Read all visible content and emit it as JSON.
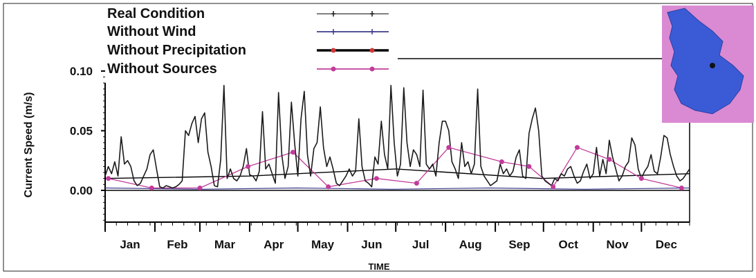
{
  "chart_data": {
    "type": "line",
    "ylabel": "Current Speed (m/s)",
    "xlabel": "TIME",
    "ylim": [
      -0.03,
      0.1
    ],
    "yticks": [
      {
        "value": 0.1,
        "label": "0.10"
      },
      {
        "value": 0.05,
        "label": "0.05"
      },
      {
        "value": 0.0,
        "label": "0.00"
      }
    ],
    "months": [
      "Jan",
      "Feb",
      "Mar",
      "Apr",
      "May",
      "Jun",
      "Jul",
      "Aug",
      "Sep",
      "Oct",
      "Nov",
      "Dec"
    ],
    "x_unit": "day of year",
    "xlim": [
      1,
      365
    ],
    "legend_position": "top-left",
    "grid": false,
    "series": [
      {
        "name": "Real Condition",
        "color": "#1a1a1a",
        "marker": "plus",
        "points": [
          [
            1,
            0.012
          ],
          [
            3,
            0.02
          ],
          [
            5,
            0.014
          ],
          [
            7,
            0.024
          ],
          [
            9,
            0.012
          ],
          [
            11,
            0.045
          ],
          [
            13,
            0.022
          ],
          [
            15,
            0.025
          ],
          [
            17,
            0.02
          ],
          [
            19,
            0.008
          ],
          [
            21,
            0.004
          ],
          [
            23,
            0.006
          ],
          [
            25,
            0.012
          ],
          [
            27,
            0.018
          ],
          [
            29,
            0.03
          ],
          [
            31,
            0.034
          ],
          [
            33,
            0.018
          ],
          [
            35,
            0.003
          ],
          [
            37,
            0.002
          ],
          [
            39,
            0.004
          ],
          [
            41,
            0.003
          ],
          [
            43,
            0.002
          ],
          [
            45,
            0.003
          ],
          [
            47,
            0.005
          ],
          [
            49,
            0.008
          ],
          [
            51,
            0.05
          ],
          [
            53,
            0.046
          ],
          [
            55,
            0.056
          ],
          [
            57,
            0.062
          ],
          [
            59,
            0.04
          ],
          [
            61,
            0.06
          ],
          [
            63,
            0.065
          ],
          [
            65,
            0.032
          ],
          [
            67,
            0.02
          ],
          [
            69,
            0.004
          ],
          [
            71,
            0.003
          ],
          [
            73,
            0.026
          ],
          [
            75,
            0.088
          ],
          [
            77,
            0.01
          ],
          [
            79,
            0.018
          ],
          [
            81,
            0.01
          ],
          [
            83,
            0.008
          ],
          [
            85,
            0.012
          ],
          [
            87,
            0.02
          ],
          [
            89,
            0.035
          ],
          [
            91,
            0.013
          ],
          [
            93,
            0.012
          ],
          [
            95,
            0.008
          ],
          [
            97,
            0.016
          ],
          [
            99,
            0.066
          ],
          [
            101,
            0.018
          ],
          [
            103,
            0.022
          ],
          [
            105,
            0.014
          ],
          [
            107,
            0.006
          ],
          [
            109,
            0.082
          ],
          [
            111,
            0.03
          ],
          [
            113,
            0.01
          ],
          [
            115,
            0.02
          ],
          [
            117,
            0.074
          ],
          [
            119,
            0.04
          ],
          [
            121,
            0.012
          ],
          [
            123,
            0.06
          ],
          [
            125,
            0.083
          ],
          [
            127,
            0.03
          ],
          [
            129,
            0.012
          ],
          [
            131,
            0.035
          ],
          [
            133,
            0.04
          ],
          [
            135,
            0.07
          ],
          [
            137,
            0.036
          ],
          [
            139,
            0.02
          ],
          [
            141,
            0.028
          ],
          [
            143,
            0.018
          ],
          [
            145,
            0.006
          ],
          [
            147,
            0.004
          ],
          [
            149,
            0.008
          ],
          [
            151,
            0.012
          ],
          [
            153,
            0.018
          ],
          [
            155,
            0.012
          ],
          [
            157,
            0.016
          ],
          [
            159,
            0.06
          ],
          [
            161,
            0.02
          ],
          [
            163,
            0.008
          ],
          [
            165,
            0.006
          ],
          [
            167,
            0.003
          ],
          [
            169,
            0.028
          ],
          [
            171,
            0.022
          ],
          [
            173,
            0.058
          ],
          [
            175,
            0.03
          ],
          [
            177,
            0.018
          ],
          [
            179,
            0.088
          ],
          [
            181,
            0.04
          ],
          [
            183,
            0.012
          ],
          [
            185,
            0.022
          ],
          [
            187,
            0.086
          ],
          [
            189,
            0.04
          ],
          [
            191,
            0.02
          ],
          [
            193,
            0.034
          ],
          [
            195,
            0.03
          ],
          [
            197,
            0.02
          ],
          [
            199,
            0.084
          ],
          [
            201,
            0.022
          ],
          [
            203,
            0.018
          ],
          [
            205,
            0.022
          ],
          [
            207,
            0.012
          ],
          [
            209,
            0.04
          ],
          [
            211,
            0.058
          ],
          [
            213,
            0.058
          ],
          [
            215,
            0.05
          ],
          [
            217,
            0.024
          ],
          [
            219,
            0.018
          ],
          [
            221,
            0.01
          ],
          [
            223,
            0.04
          ],
          [
            225,
            0.02
          ],
          [
            227,
            0.024
          ],
          [
            229,
            0.014
          ],
          [
            231,
            0.022
          ],
          [
            233,
            0.085
          ],
          [
            235,
            0.02
          ],
          [
            237,
            0.012
          ],
          [
            239,
            0.008
          ],
          [
            241,
            0.004
          ],
          [
            243,
            0.006
          ],
          [
            245,
            0.008
          ],
          [
            247,
            0.022
          ],
          [
            249,
            0.014
          ],
          [
            251,
            0.018
          ],
          [
            253,
            0.012
          ],
          [
            255,
            0.016
          ],
          [
            257,
            0.028
          ],
          [
            259,
            0.034
          ],
          [
            261,
            0.012
          ],
          [
            263,
            0.01
          ],
          [
            265,
            0.048
          ],
          [
            267,
            0.06
          ],
          [
            269,
            0.069
          ],
          [
            271,
            0.05
          ],
          [
            273,
            0.012
          ],
          [
            275,
            0.008
          ],
          [
            277,
            0.006
          ],
          [
            279,
            0.004
          ],
          [
            281,
            0.01
          ],
          [
            283,
            0.008
          ],
          [
            285,
            0.014
          ],
          [
            287,
            0.012
          ],
          [
            289,
            0.018
          ],
          [
            291,
            0.02
          ],
          [
            293,
            0.012
          ],
          [
            295,
            0.006
          ],
          [
            297,
            0.008
          ],
          [
            299,
            0.016
          ],
          [
            301,
            0.022
          ],
          [
            303,
            0.01
          ],
          [
            305,
            0.014
          ],
          [
            307,
            0.036
          ],
          [
            309,
            0.012
          ],
          [
            311,
            0.026
          ],
          [
            313,
            0.014
          ],
          [
            315,
            0.042
          ],
          [
            317,
            0.028
          ],
          [
            319,
            0.018
          ],
          [
            321,
            0.008
          ],
          [
            323,
            0.012
          ],
          [
            325,
            0.02
          ],
          [
            327,
            0.024
          ],
          [
            329,
            0.044
          ],
          [
            331,
            0.038
          ],
          [
            333,
            0.018
          ],
          [
            335,
            0.01
          ],
          [
            337,
            0.016
          ],
          [
            339,
            0.02
          ],
          [
            341,
            0.03
          ],
          [
            343,
            0.016
          ],
          [
            345,
            0.014
          ],
          [
            347,
            0.028
          ],
          [
            349,
            0.046
          ],
          [
            351,
            0.044
          ],
          [
            353,
            0.03
          ],
          [
            355,
            0.02
          ],
          [
            357,
            0.012
          ],
          [
            359,
            0.008
          ],
          [
            361,
            0.01
          ],
          [
            363,
            0.014
          ],
          [
            365,
            0.018
          ]
        ]
      },
      {
        "name": "Without Wind",
        "color": "#3b3b8c",
        "marker": "plus",
        "points": [
          [
            1,
            0.002
          ],
          [
            60,
            0.001
          ],
          [
            120,
            0.002
          ],
          [
            180,
            0.001
          ],
          [
            240,
            0.002
          ],
          [
            300,
            0.001
          ],
          [
            365,
            0.002
          ]
        ]
      },
      {
        "name": "Without Precipitation",
        "color": "#000000",
        "marker": "dot",
        "points": [
          [
            1,
            0.01
          ],
          [
            91,
            0.012
          ],
          [
            182,
            0.018
          ],
          [
            273,
            0.01
          ],
          [
            365,
            0.014
          ]
        ]
      },
      {
        "name": "Without Sources",
        "color": "#c23b9a",
        "marker": "dot",
        "points": [
          [
            3,
            0.01
          ],
          [
            30,
            0.002
          ],
          [
            60,
            0.002
          ],
          [
            90,
            0.02
          ],
          [
            118,
            0.032
          ],
          [
            140,
            0.003
          ],
          [
            170,
            0.01
          ],
          [
            195,
            0.006
          ],
          [
            215,
            0.036
          ],
          [
            248,
            0.024
          ],
          [
            265,
            0.02
          ],
          [
            280,
            0.003
          ],
          [
            295,
            0.036
          ],
          [
            315,
            0.026
          ],
          [
            335,
            0.01
          ],
          [
            360,
            0.002
          ]
        ]
      }
    ]
  },
  "inset": {
    "legend": "Inset map of study area"
  }
}
